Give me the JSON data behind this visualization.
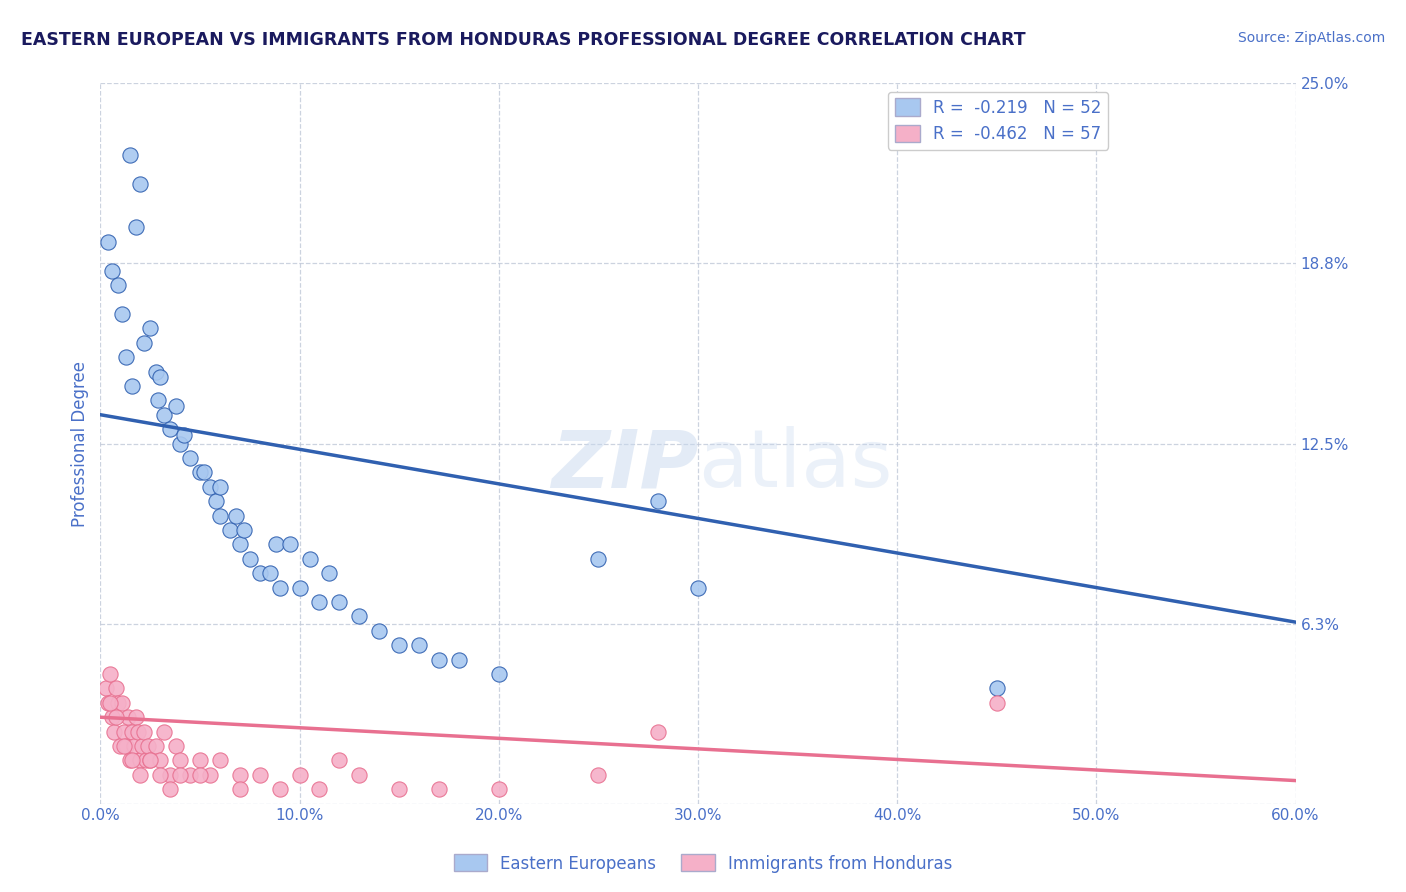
{
  "title": "EASTERN EUROPEAN VS IMMIGRANTS FROM HONDURAS PROFESSIONAL DEGREE CORRELATION CHART",
  "source_text": "Source: ZipAtlas.com",
  "ylabel": "Professional Degree",
  "xlim": [
    0.0,
    60.0
  ],
  "ylim": [
    0.0,
    25.0
  ],
  "xticks": [
    0.0,
    10.0,
    20.0,
    30.0,
    40.0,
    50.0,
    60.0
  ],
  "yticks": [
    0.0,
    6.25,
    12.5,
    18.75,
    25.0
  ],
  "ytick_labels": [
    "",
    "6.3%",
    "12.5%",
    "18.8%",
    "25.0%"
  ],
  "xtick_labels": [
    "0.0%",
    "10.0%",
    "20.0%",
    "30.0%",
    "40.0%",
    "50.0%",
    "60.0%"
  ],
  "series1_label": "Eastern Europeans",
  "series2_label": "Immigrants from Honduras",
  "series1_color": "#a8c8f0",
  "series2_color": "#f5b0c8",
  "series1_line_color": "#3060b0",
  "series2_line_color": "#e87090",
  "background_color": "#ffffff",
  "grid_color": "#c0c8d8",
  "title_color": "#1a1a5e",
  "axis_color": "#4a70c8",
  "legend_label1": "R =  -0.219   N = 52",
  "legend_label2": "R =  -0.462   N = 57",
  "series1_x": [
    1.5,
    2.0,
    1.8,
    0.4,
    0.6,
    0.9,
    1.1,
    2.5,
    2.2,
    1.3,
    2.8,
    1.6,
    3.0,
    2.9,
    3.2,
    3.5,
    4.0,
    3.8,
    4.5,
    5.0,
    4.2,
    5.5,
    5.8,
    6.0,
    5.2,
    6.5,
    7.0,
    6.8,
    7.5,
    8.0,
    7.2,
    8.5,
    9.0,
    8.8,
    10.0,
    11.0,
    10.5,
    12.0,
    13.0,
    14.0,
    15.0,
    16.0,
    17.0,
    18.0,
    20.0,
    25.0,
    30.0,
    45.0,
    6.0,
    9.5,
    11.5,
    28.0
  ],
  "series1_y": [
    22.5,
    21.5,
    20.0,
    19.5,
    18.5,
    18.0,
    17.0,
    16.5,
    16.0,
    15.5,
    15.0,
    14.5,
    14.8,
    14.0,
    13.5,
    13.0,
    12.5,
    13.8,
    12.0,
    11.5,
    12.8,
    11.0,
    10.5,
    10.0,
    11.5,
    9.5,
    9.0,
    10.0,
    8.5,
    8.0,
    9.5,
    8.0,
    7.5,
    9.0,
    7.5,
    7.0,
    8.5,
    7.0,
    6.5,
    6.0,
    5.5,
    5.5,
    5.0,
    5.0,
    4.5,
    8.5,
    7.5,
    4.0,
    11.0,
    9.0,
    8.0,
    10.5
  ],
  "series2_x": [
    0.3,
    0.4,
    0.5,
    0.6,
    0.7,
    0.8,
    0.9,
    1.0,
    1.1,
    1.2,
    1.3,
    1.4,
    1.5,
    1.6,
    1.7,
    1.8,
    1.9,
    2.0,
    2.1,
    2.2,
    2.3,
    2.4,
    2.5,
    2.8,
    3.0,
    3.2,
    3.5,
    3.8,
    4.0,
    4.5,
    5.0,
    5.5,
    6.0,
    7.0,
    8.0,
    9.0,
    10.0,
    11.0,
    12.0,
    13.0,
    15.0,
    17.0,
    20.0,
    25.0,
    45.0,
    0.5,
    0.8,
    1.2,
    1.6,
    2.0,
    2.5,
    3.0,
    3.5,
    4.0,
    5.0,
    7.0,
    28.0
  ],
  "series2_y": [
    4.0,
    3.5,
    4.5,
    3.0,
    2.5,
    4.0,
    3.5,
    2.0,
    3.5,
    2.5,
    2.0,
    3.0,
    1.5,
    2.5,
    2.0,
    3.0,
    2.5,
    1.5,
    2.0,
    2.5,
    1.5,
    2.0,
    1.5,
    2.0,
    1.5,
    2.5,
    1.0,
    2.0,
    1.5,
    1.0,
    1.5,
    1.0,
    1.5,
    1.0,
    1.0,
    0.5,
    1.0,
    0.5,
    1.5,
    1.0,
    0.5,
    0.5,
    0.5,
    1.0,
    3.5,
    3.5,
    3.0,
    2.0,
    1.5,
    1.0,
    1.5,
    1.0,
    0.5,
    1.0,
    1.0,
    0.5,
    2.5
  ],
  "trendline1_x0": 0.0,
  "trendline1_y0": 13.5,
  "trendline1_x1": 60.0,
  "trendline1_y1": 6.3,
  "trendline2_x0": 0.0,
  "trendline2_y0": 3.0,
  "trendline2_x1": 60.0,
  "trendline2_y1": 0.8
}
